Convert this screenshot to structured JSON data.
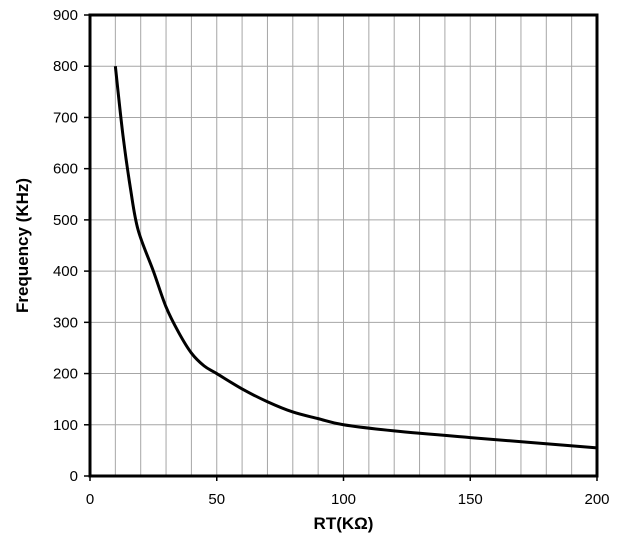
{
  "chart_data": {
    "type": "line",
    "title": "",
    "xlabel": "RT(KΩ)",
    "ylabel": "Frequency (KHz)",
    "xlim": [
      0,
      200
    ],
    "ylim": [
      0,
      900
    ],
    "x_ticks": [
      0,
      50,
      100,
      150,
      200
    ],
    "y_ticks": [
      0,
      100,
      200,
      300,
      400,
      500,
      600,
      700,
      800,
      900
    ],
    "x_minor_step": 10,
    "y_major_step": 100,
    "grid": true,
    "line_color": "#000000",
    "grid_color": "#a6a6a6",
    "baseline_color": "#1f3864",
    "series": [
      {
        "x": [
          10,
          13,
          16,
          19,
          25,
          30,
          35,
          40,
          45,
          50,
          60,
          70,
          80,
          90,
          100,
          120,
          150,
          200
        ],
        "y": [
          800,
          665,
          560,
          480,
          400,
          330,
          280,
          240,
          215,
          200,
          170,
          145,
          125,
          112,
          100,
          88,
          75,
          55
        ]
      }
    ]
  }
}
